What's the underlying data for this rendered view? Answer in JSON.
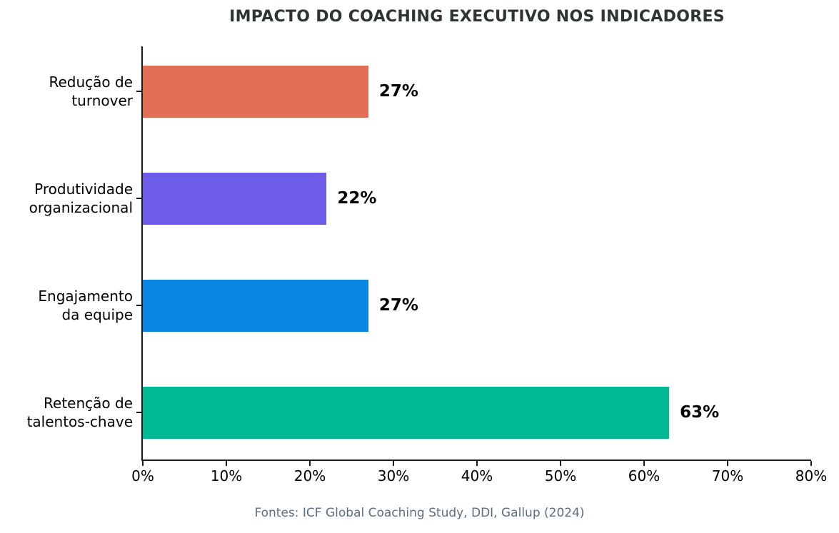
{
  "chart_data": {
    "type": "bar",
    "orientation": "horizontal",
    "title": "IMPACTO DO COACHING EXECUTIVO NOS INDICADORES",
    "categories": [
      "Redução de\nturnover",
      "Produtividade\norganizacional",
      "Engajamento\nda equipe",
      "Retenção de\ntalentos-chave"
    ],
    "values": [
      27,
      22,
      27,
      63
    ],
    "unit": "%",
    "value_labels": [
      "27%",
      "22%",
      "27%",
      "63%"
    ],
    "bar_colors": [
      "#e17055",
      "#6c5ce7",
      "#0984e3",
      "#00b894"
    ],
    "xlabel": "",
    "ylabel": "",
    "xlim": [
      0,
      80
    ],
    "xticks": [
      0,
      10,
      20,
      30,
      40,
      50,
      60,
      70,
      80
    ],
    "xtick_labels": [
      "0%",
      "10%",
      "20%",
      "30%",
      "40%",
      "50%",
      "60%",
      "70%",
      "80%"
    ],
    "grid": false,
    "legend": false,
    "source_note": "Fontes: ICF Global Coaching Study, DDI, Gallup (2024)"
  },
  "colors": {
    "background": "#ffffff",
    "title": "#2d3436",
    "axis": "#1a1a1a",
    "tick_label": "#000000",
    "category_label": "#000000",
    "value_label": "#000000",
    "source_note": "#5f6e7c"
  }
}
